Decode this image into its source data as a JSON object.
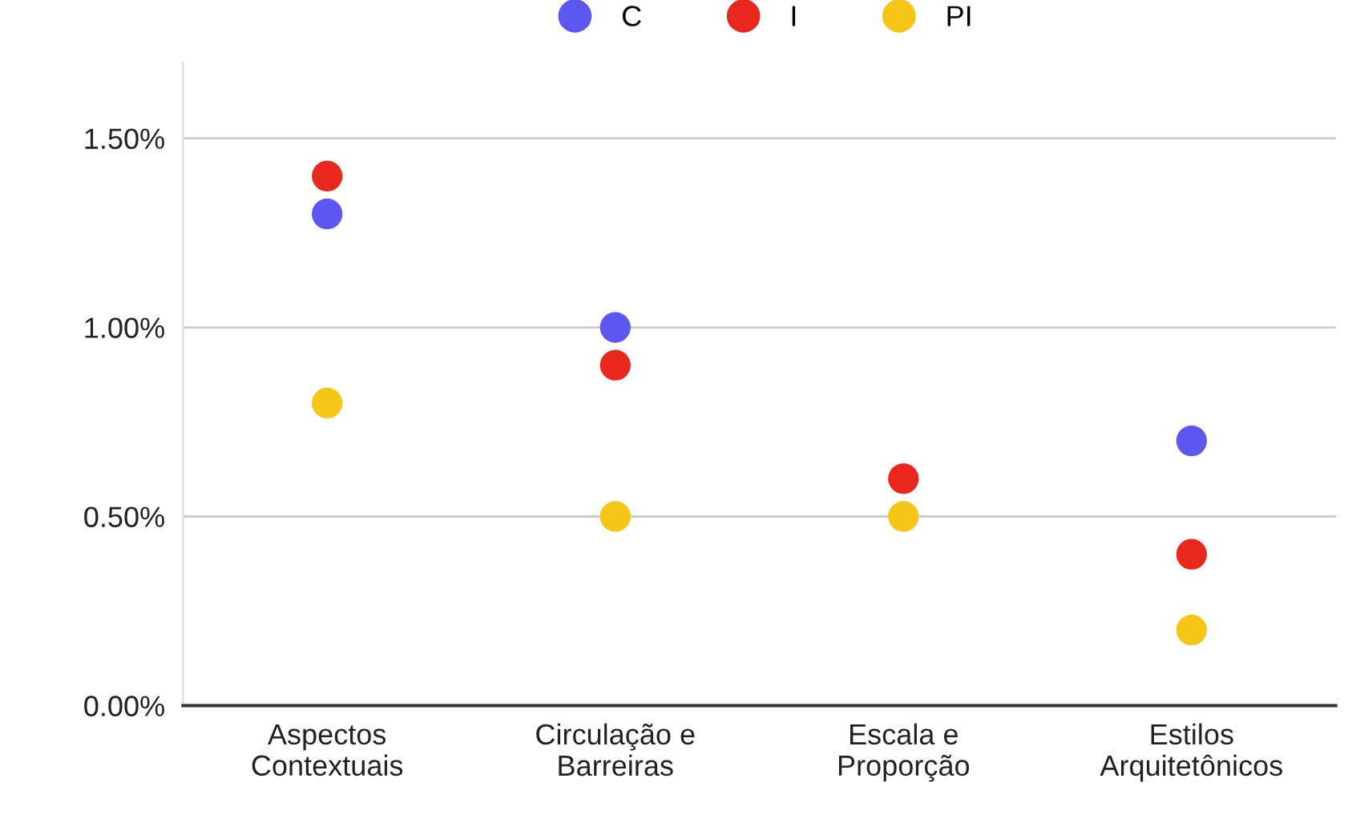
{
  "chart_data": {
    "type": "scatter",
    "categories": [
      "Aspectos\nContextuais",
      "Circulação e\nBarreiras",
      "Escala e\nProporção",
      "Estilos\nArquitetônicos"
    ],
    "series": [
      {
        "name": "C",
        "color": "#5b57f0",
        "values": [
          1.3,
          1.0,
          null,
          0.7
        ]
      },
      {
        "name": "I",
        "color": "#e8281c",
        "values": [
          1.4,
          0.9,
          0.6,
          0.4
        ]
      },
      {
        "name": "PI",
        "color": "#f5c518",
        "values": [
          0.8,
          0.5,
          0.5,
          0.2
        ]
      }
    ],
    "ylim": [
      0,
      1.7
    ],
    "yticks": [
      {
        "value": 0,
        "label": "0.00%"
      },
      {
        "value": 0.5,
        "label": "0.50%"
      },
      {
        "value": 1.0,
        "label": "1.00%"
      },
      {
        "value": 1.5,
        "label": "1.50%"
      }
    ],
    "grid": "y",
    "legend": "top",
    "marker": "circle"
  }
}
